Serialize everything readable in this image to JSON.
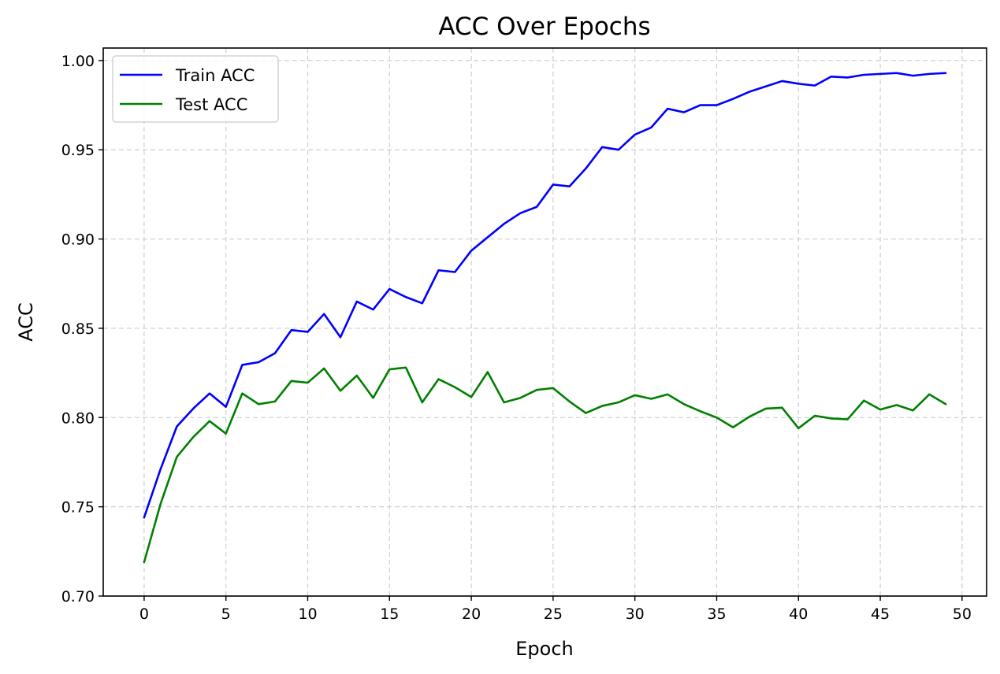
{
  "chart_data": {
    "type": "line",
    "title": "ACC Over Epochs",
    "xlabel": "Epoch",
    "ylabel": "ACC",
    "xlim": [
      -2.5,
      51.5
    ],
    "ylim": [
      0.7,
      1.007
    ],
    "xticks": [
      0,
      5,
      10,
      15,
      20,
      25,
      30,
      35,
      40,
      45,
      50
    ],
    "yticks": [
      0.7,
      0.75,
      0.8,
      0.85,
      0.9,
      0.95,
      1.0
    ],
    "ytick_labels": [
      "0.70",
      "0.75",
      "0.80",
      "0.85",
      "0.90",
      "0.95",
      "1.00"
    ],
    "grid": true,
    "legend_position": "top-left",
    "x": [
      0,
      1,
      2,
      3,
      4,
      5,
      6,
      7,
      8,
      9,
      10,
      11,
      12,
      13,
      14,
      15,
      16,
      17,
      18,
      19,
      20,
      21,
      22,
      23,
      24,
      25,
      26,
      27,
      28,
      29,
      30,
      31,
      32,
      33,
      34,
      35,
      36,
      37,
      38,
      39,
      40,
      41,
      42,
      43,
      44,
      45,
      46,
      47,
      48,
      49
    ],
    "series": [
      {
        "name": "Train ACC",
        "color": "#0000ff",
        "values": [
          0.744,
          0.771,
          0.795,
          0.805,
          0.8135,
          0.806,
          0.8295,
          0.831,
          0.836,
          0.849,
          0.848,
          0.858,
          0.845,
          0.865,
          0.8605,
          0.872,
          0.8675,
          0.864,
          0.8825,
          0.8815,
          0.8935,
          0.901,
          0.9085,
          0.9145,
          0.918,
          0.9305,
          0.9295,
          0.9395,
          0.9515,
          0.95,
          0.9585,
          0.9625,
          0.973,
          0.971,
          0.975,
          0.975,
          0.9785,
          0.9825,
          0.9855,
          0.9885,
          0.987,
          0.986,
          0.991,
          0.9905,
          0.992,
          0.9925,
          0.993,
          0.9915,
          0.9925,
          0.993
        ]
      },
      {
        "name": "Test ACC",
        "color": "#008000",
        "values": [
          0.719,
          0.7515,
          0.778,
          0.789,
          0.798,
          0.791,
          0.8135,
          0.8075,
          0.809,
          0.8205,
          0.8195,
          0.8275,
          0.815,
          0.8235,
          0.811,
          0.827,
          0.828,
          0.8085,
          0.8215,
          0.817,
          0.8115,
          0.8255,
          0.8085,
          0.811,
          0.8155,
          0.8165,
          0.809,
          0.8025,
          0.8065,
          0.8085,
          0.8125,
          0.8105,
          0.813,
          0.8075,
          0.8035,
          0.8,
          0.7945,
          0.8005,
          0.805,
          0.8055,
          0.794,
          0.801,
          0.7995,
          0.799,
          0.8095,
          0.8045,
          0.807,
          0.804,
          0.813,
          0.8075
        ]
      }
    ]
  }
}
